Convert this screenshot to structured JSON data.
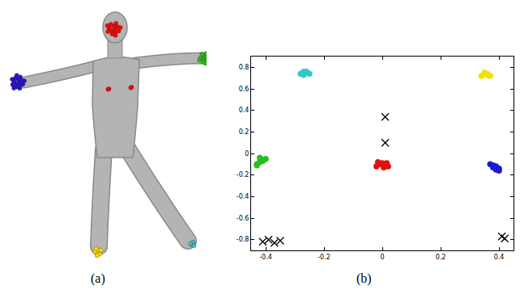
{
  "labels": [
    "(a)",
    "(b)"
  ],
  "panel_a_colors": [
    "#e01010",
    "#1a1ad0",
    "#22c022",
    "#f0e000",
    "#30c8c8"
  ],
  "chart_data": {
    "type": "scatter",
    "xlim": [
      -0.45,
      0.45
    ],
    "ylim": [
      -0.9,
      0.9
    ],
    "xticks": [
      -0.4,
      -0.2,
      0,
      0.2,
      0.4
    ],
    "yticks": [
      -0.8,
      -0.6,
      -0.4,
      -0.2,
      0,
      0.2,
      0.4,
      0.6,
      0.8
    ],
    "grid": false,
    "series": [
      {
        "color": "#30c8c8",
        "marker": "circle",
        "x": [
          -0.28,
          -0.27,
          -0.26,
          -0.25,
          -0.27,
          -0.26
        ],
        "y": [
          0.74,
          0.76,
          0.75,
          0.74,
          0.73,
          0.76
        ]
      },
      {
        "color": "#f0e000",
        "marker": "circle",
        "x": [
          0.34,
          0.35,
          0.36,
          0.37,
          0.35,
          0.36
        ],
        "y": [
          0.72,
          0.74,
          0.73,
          0.72,
          0.75,
          0.74
        ]
      },
      {
        "color": "#22c022",
        "marker": "circle",
        "x": [
          -0.43,
          -0.42,
          -0.41,
          -0.4,
          -0.42,
          -0.41,
          -0.43
        ],
        "y": [
          -0.1,
          -0.08,
          -0.06,
          -0.05,
          -0.04,
          -0.07,
          -0.11
        ]
      },
      {
        "color": "#e01010",
        "marker": "circle",
        "x": [
          -0.02,
          -0.01,
          0.0,
          0.01,
          0.02,
          -0.015,
          0.005,
          0.015
        ],
        "y": [
          -0.12,
          -0.1,
          -0.09,
          -0.11,
          -0.12,
          -0.08,
          -0.13,
          -0.09
        ]
      },
      {
        "color": "#1a1ad0",
        "marker": "circle",
        "x": [
          0.37,
          0.38,
          0.39,
          0.4,
          0.38,
          0.39,
          0.4
        ],
        "y": [
          -0.1,
          -0.11,
          -0.12,
          -0.14,
          -0.13,
          -0.15,
          -0.16
        ]
      },
      {
        "color": "#000000",
        "marker": "x",
        "x": [
          0.01,
          0.01,
          -0.41,
          -0.39,
          -0.37,
          -0.35,
          0.41,
          0.42
        ],
        "y": [
          0.34,
          0.1,
          -0.82,
          -0.8,
          -0.83,
          -0.81,
          -0.77,
          -0.79
        ]
      }
    ]
  }
}
